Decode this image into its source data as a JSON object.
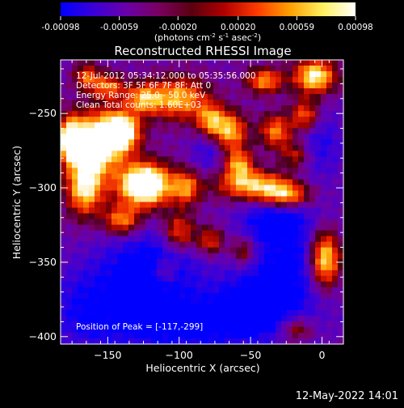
{
  "colorbar": {
    "ticks": [
      "-0.00098",
      "-0.00059",
      "-0.00020",
      "0.00020",
      "0.00059",
      "0.00098"
    ],
    "unit_label": "(photons cm",
    "unit_sup1": "-2",
    "unit_mid": " s",
    "unit_sup2": "-1",
    "unit_mid2": " asec",
    "unit_sup3": "-2",
    "unit_end": ")",
    "stops": [
      "#0000ff",
      "#3a00d8",
      "#6a00a8",
      "#7a0060",
      "#5a0010",
      "#b00000",
      "#ff3a00",
      "#ffa000",
      "#fff060",
      "#ffffff"
    ]
  },
  "footer": {
    "timestamp": "12-May-2022 14:01"
  },
  "chart_data": {
    "type": "heatmap",
    "title": "Reconstructed RHESSI Image",
    "xlabel": "Heliocentric X (arcsec)",
    "ylabel": "Heliocentric Y (arcsec)",
    "xlim": [
      -183,
      15
    ],
    "ylim": [
      -405,
      -214
    ],
    "xticks": [
      -150,
      -100,
      -50,
      0
    ],
    "yticks": [
      -250,
      -300,
      -350,
      -400
    ],
    "info_lines": [
      "12-Jul-2012 05:34:12.000 to 05:35:56.000",
      "Detectors: 3F 5F 6F 7F 8F; Att 0",
      "Energy Range: 25.0 - 50.0 keV",
      "Clean    Total counts: 1.60E+03"
    ],
    "peak_text": "Position of Peak = [-117,-299]",
    "value_range": [
      -0.00098,
      0.00098
    ],
    "blobs": [
      {
        "x": -124,
        "y": -298,
        "sx": 13,
        "sy": 10,
        "a": 1.0
      },
      {
        "x": -158,
        "y": -270,
        "sx": 13,
        "sy": 14,
        "a": 0.85
      },
      {
        "x": -140,
        "y": -262,
        "sx": 9,
        "sy": 9,
        "a": 0.75
      },
      {
        "x": -176,
        "y": -268,
        "sx": 6,
        "sy": 10,
        "a": 0.75
      },
      {
        "x": -166,
        "y": -300,
        "sx": 9,
        "sy": 13,
        "a": 0.65
      },
      {
        "x": -100,
        "y": -240,
        "sx": 14,
        "sy": 10,
        "a": 0.55
      },
      {
        "x": -125,
        "y": -240,
        "sx": 9,
        "sy": 7,
        "a": 0.5
      },
      {
        "x": -64,
        "y": -262,
        "sx": 8,
        "sy": 9,
        "a": 0.55
      },
      {
        "x": -58,
        "y": -284,
        "sx": 7,
        "sy": 7,
        "a": 0.5
      },
      {
        "x": -48,
        "y": -298,
        "sx": 18,
        "sy": 7,
        "a": 0.6
      },
      {
        "x": -25,
        "y": -305,
        "sx": 12,
        "sy": 6,
        "a": 0.55
      },
      {
        "x": -78,
        "y": -255,
        "sx": 7,
        "sy": 8,
        "a": 0.5
      },
      {
        "x": -32,
        "y": -262,
        "sx": 8,
        "sy": 8,
        "a": 0.5
      },
      {
        "x": -12,
        "y": -252,
        "sx": 7,
        "sy": 8,
        "a": 0.5
      },
      {
        "x": -5,
        "y": -225,
        "sx": 10,
        "sy": 8,
        "a": 0.7
      },
      {
        "x": -40,
        "y": -228,
        "sx": 9,
        "sy": 6,
        "a": 0.5
      },
      {
        "x": -18,
        "y": -278,
        "sx": 8,
        "sy": 7,
        "a": 0.4
      },
      {
        "x": 2,
        "y": -348,
        "sx": 8,
        "sy": 14,
        "a": 0.8
      },
      {
        "x": -100,
        "y": -330,
        "sx": 8,
        "sy": 9,
        "a": 0.45
      },
      {
        "x": -78,
        "y": -336,
        "sx": 7,
        "sy": 7,
        "a": 0.4
      },
      {
        "x": -55,
        "y": -343,
        "sx": 6,
        "sy": 7,
        "a": 0.35
      },
      {
        "x": -140,
        "y": -322,
        "sx": 9,
        "sy": 7,
        "a": 0.5
      },
      {
        "x": -110,
        "y": -356,
        "sx": 6,
        "sy": 6,
        "a": 0.3
      },
      {
        "x": -95,
        "y": -300,
        "sx": 7,
        "sy": 8,
        "a": 0.45
      },
      {
        "x": -150,
        "y": -232,
        "sx": 8,
        "sy": 6,
        "a": 0.45
      },
      {
        "x": -18,
        "y": -395,
        "sx": 8,
        "sy": 6,
        "a": 0.35
      },
      {
        "x": -165,
        "y": -225,
        "sx": 6,
        "sy": 6,
        "a": 0.4
      }
    ],
    "dark_regions": [
      {
        "x": -120,
        "y": -355,
        "sx": 24,
        "sy": 18,
        "a": 0.4
      },
      {
        "x": -100,
        "y": -392,
        "sx": 38,
        "sy": 14,
        "a": 0.35
      },
      {
        "x": -22,
        "y": -350,
        "sx": 24,
        "sy": 28,
        "a": 0.35
      },
      {
        "x": -50,
        "y": -380,
        "sx": 20,
        "sy": 14,
        "a": 0.3
      },
      {
        "x": -35,
        "y": -322,
        "sx": 14,
        "sy": 8,
        "a": 0.25
      },
      {
        "x": -165,
        "y": -380,
        "sx": 20,
        "sy": 20,
        "a": 0.25
      },
      {
        "x": -80,
        "y": -275,
        "sx": 8,
        "sy": 10,
        "a": 0.2
      },
      {
        "x": -5,
        "y": -270,
        "sx": 14,
        "sy": 16,
        "a": 0.25
      }
    ]
  }
}
